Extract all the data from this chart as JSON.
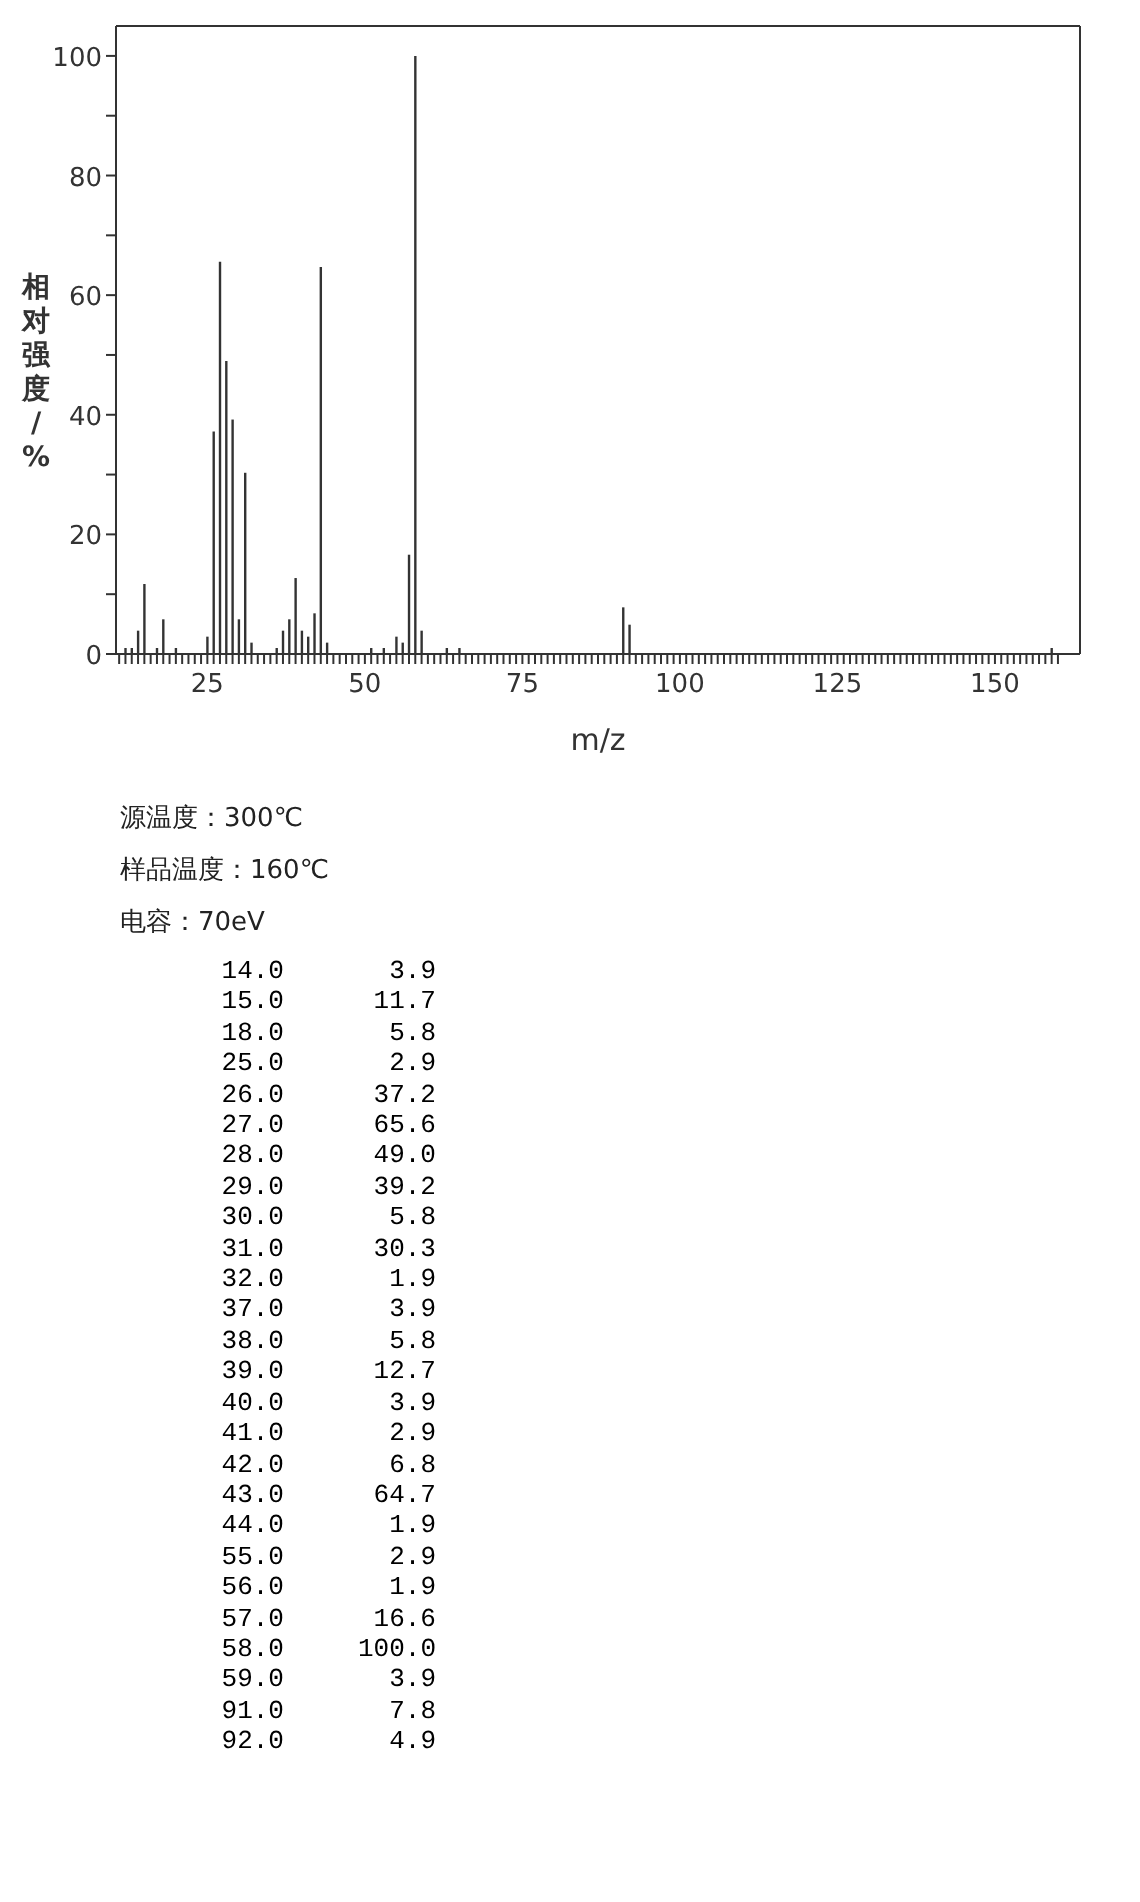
{
  "chart_data": {
    "type": "bar",
    "xlabel": "m/z",
    "ylabel": "相对强度/%",
    "x": [
      12,
      13,
      14,
      15,
      17,
      18,
      20,
      25,
      26,
      27,
      28,
      29,
      30,
      31,
      32,
      36,
      37,
      38,
      39,
      40,
      41,
      42,
      43,
      44,
      51,
      53,
      55,
      56,
      57,
      58,
      59,
      63,
      65,
      91,
      92,
      159
    ],
    "values": [
      1,
      1,
      3.9,
      11.7,
      1,
      5.8,
      1,
      2.9,
      37.2,
      65.6,
      49.0,
      39.2,
      5.8,
      30.3,
      1.9,
      1,
      3.9,
      5.8,
      12.7,
      3.9,
      2.9,
      6.8,
      64.7,
      1.9,
      1,
      1,
      2.9,
      1.9,
      16.6,
      100.0,
      3.9,
      1,
      1,
      7.8,
      4.9,
      1
    ],
    "color": "#333333",
    "xlim": [
      10.5,
      163.5
    ],
    "xticks": [
      {
        "value": 11,
        "label": null
      },
      {
        "value": 12,
        "label": null
      },
      {
        "value": 13,
        "label": null
      },
      {
        "value": 14,
        "label": null
      },
      {
        "value": 15,
        "label": null
      },
      {
        "value": 16,
        "label": null
      },
      {
        "value": 17,
        "label": null
      },
      {
        "value": 18,
        "label": null
      },
      {
        "value": 19,
        "label": null
      },
      {
        "value": 20,
        "label": null
      },
      {
        "value": 21,
        "label": null
      },
      {
        "value": 22,
        "label": null
      },
      {
        "value": 23,
        "label": null
      },
      {
        "value": 24,
        "label": null
      },
      25,
      {
        "value": 26,
        "label": null
      },
      {
        "value": 27,
        "label": null
      },
      {
        "value": 28,
        "label": null
      },
      {
        "value": 29,
        "label": null
      },
      {
        "value": 30,
        "label": null
      },
      {
        "value": 31,
        "label": null
      },
      {
        "value": 32,
        "label": null
      },
      {
        "value": 33,
        "label": null
      },
      {
        "value": 34,
        "label": null
      },
      {
        "value": 35,
        "label": null
      },
      {
        "value": 36,
        "label": null
      },
      {
        "value": 37,
        "label": null
      },
      {
        "value": 38,
        "label": null
      },
      {
        "value": 39,
        "label": null
      },
      {
        "value": 40,
        "label": null
      },
      {
        "value": 41,
        "label": null
      },
      {
        "value": 42,
        "label": null
      },
      {
        "value": 43,
        "label": null
      },
      {
        "value": 44,
        "label": null
      },
      {
        "value": 45,
        "label": null
      },
      {
        "value": 46,
        "label": null
      },
      {
        "value": 47,
        "label": null
      },
      {
        "value": 48,
        "label": null
      },
      {
        "value": 49,
        "label": null
      },
      50,
      {
        "value": 51,
        "label": null
      },
      {
        "value": 52,
        "label": null
      },
      {
        "value": 53,
        "label": null
      },
      {
        "value": 54,
        "label": null
      },
      {
        "value": 55,
        "label": null
      },
      {
        "value": 56,
        "label": null
      },
      {
        "value": 57,
        "label": null
      },
      {
        "value": 58,
        "label": null
      },
      {
        "value": 59,
        "label": null
      },
      {
        "value": 60,
        "label": null
      },
      {
        "value": 61,
        "label": null
      },
      {
        "value": 62,
        "label": null
      },
      {
        "value": 63,
        "label": null
      },
      {
        "value": 64,
        "label": null
      },
      {
        "value": 65,
        "label": null
      },
      {
        "value": 66,
        "label": null
      },
      {
        "value": 67,
        "label": null
      },
      {
        "value": 68,
        "label": null
      },
      {
        "value": 69,
        "label": null
      },
      {
        "value": 70,
        "label": null
      },
      {
        "value": 71,
        "label": null
      },
      {
        "value": 72,
        "label": null
      },
      {
        "value": 73,
        "label": null
      },
      {
        "value": 74,
        "label": null
      },
      75,
      {
        "value": 76,
        "label": null
      },
      {
        "value": 77,
        "label": null
      },
      {
        "value": 78,
        "label": null
      },
      {
        "value": 79,
        "label": null
      },
      {
        "value": 80,
        "label": null
      },
      {
        "value": 81,
        "label": null
      },
      {
        "value": 82,
        "label": null
      },
      {
        "value": 83,
        "label": null
      },
      {
        "value": 84,
        "label": null
      },
      {
        "value": 85,
        "label": null
      },
      {
        "value": 86,
        "label": null
      },
      {
        "value": 87,
        "label": null
      },
      {
        "value": 88,
        "label": null
      },
      {
        "value": 89,
        "label": null
      },
      {
        "value": 90,
        "label": null
      },
      {
        "value": 91,
        "label": null
      },
      {
        "value": 92,
        "label": null
      },
      {
        "value": 93,
        "label": null
      },
      {
        "value": 94,
        "label": null
      },
      {
        "value": 95,
        "label": null
      },
      {
        "value": 96,
        "label": null
      },
      {
        "value": 97,
        "label": null
      },
      {
        "value": 98,
        "label": null
      },
      {
        "value": 99,
        "label": null
      },
      100,
      {
        "value": 101,
        "label": null
      },
      {
        "value": 102,
        "label": null
      },
      {
        "value": 103,
        "label": null
      },
      {
        "value": 104,
        "label": null
      },
      {
        "value": 105,
        "label": null
      },
      {
        "value": 106,
        "label": null
      },
      {
        "value": 107,
        "label": null
      },
      {
        "value": 108,
        "label": null
      },
      {
        "value": 109,
        "label": null
      },
      {
        "value": 110,
        "label": null
      },
      {
        "value": 111,
        "label": null
      },
      {
        "value": 112,
        "label": null
      },
      {
        "value": 113,
        "label": null
      },
      {
        "value": 114,
        "label": null
      },
      {
        "value": 115,
        "label": null
      },
      {
        "value": 116,
        "label": null
      },
      {
        "value": 117,
        "label": null
      },
      {
        "value": 118,
        "label": null
      },
      {
        "value": 119,
        "label": null
      },
      {
        "value": 120,
        "label": null
      },
      {
        "value": 121,
        "label": null
      },
      {
        "value": 122,
        "label": null
      },
      {
        "value": 123,
        "label": null
      },
      {
        "value": 124,
        "label": null
      },
      125,
      {
        "value": 126,
        "label": null
      },
      {
        "value": 127,
        "label": null
      },
      {
        "value": 128,
        "label": null
      },
      {
        "value": 129,
        "label": null
      },
      {
        "value": 130,
        "label": null
      },
      {
        "value": 131,
        "label": null
      },
      {
        "value": 132,
        "label": null
      },
      {
        "value": 133,
        "label": null
      },
      {
        "value": 134,
        "label": null
      },
      {
        "value": 135,
        "label": null
      },
      {
        "value": 136,
        "label": null
      },
      {
        "value": 137,
        "label": null
      },
      {
        "value": 138,
        "label": null
      },
      {
        "value": 139,
        "label": null
      },
      {
        "value": 140,
        "label": null
      },
      {
        "value": 141,
        "label": null
      },
      {
        "value": 142,
        "label": null
      },
      {
        "value": 143,
        "label": null
      },
      {
        "value": 144,
        "label": null
      },
      {
        "value": 145,
        "label": null
      },
      {
        "value": 146,
        "label": null
      },
      {
        "value": 147,
        "label": null
      },
      {
        "value": 148,
        "label": null
      },
      {
        "value": 149,
        "label": null
      },
      150,
      {
        "value": 151,
        "label": null
      },
      {
        "value": 152,
        "label": null
      },
      {
        "value": 153,
        "label": null
      },
      {
        "value": 154,
        "label": null
      },
      {
        "value": 155,
        "label": null
      },
      {
        "value": 156,
        "label": null
      },
      {
        "value": 157,
        "label": null
      },
      {
        "value": 158,
        "label": null
      },
      {
        "value": 159,
        "label": null
      },
      {
        "value": 160,
        "label": null
      }
    ],
    "ylim": [
      0,
      105
    ],
    "yticks": [
      0,
      {
        "value": 10,
        "label": null
      },
      20,
      {
        "value": 30,
        "label": null
      },
      40,
      {
        "value": 50,
        "label": null
      },
      60,
      {
        "value": 70,
        "label": null
      },
      80,
      {
        "value": 90,
        "label": null
      },
      100
    ],
    "grid": false,
    "legend": false,
    "annotations": [
      "源温度：300℃",
      "样品温度：160℃",
      "电容：70eV",
      "14.0",
      "3.9",
      "15.0",
      "11.7",
      "18.0",
      "5.8",
      "25.0",
      "2.9",
      "26.0",
      "37.2",
      "27.0",
      "65.6",
      "28.0",
      "49.0",
      "29.0",
      "39.2",
      "30.0",
      "5.8",
      "31.0",
      "30.3",
      "32.0",
      "1.9",
      "37.0",
      "3.9",
      "38.0",
      "5.8",
      "39.0",
      "12.7",
      "40.0",
      "3.9",
      "41.0",
      "2.9",
      "42.0",
      "6.8",
      "43.0",
      "64.7",
      "44.0",
      "1.9",
      "55.0",
      "2.9",
      "56.0",
      "1.9",
      "57.0",
      "16.6",
      "58.0",
      "100.0",
      "59.0",
      "3.9",
      "91.0",
      "7.8",
      "92.0",
      "4.9"
    ]
  }
}
